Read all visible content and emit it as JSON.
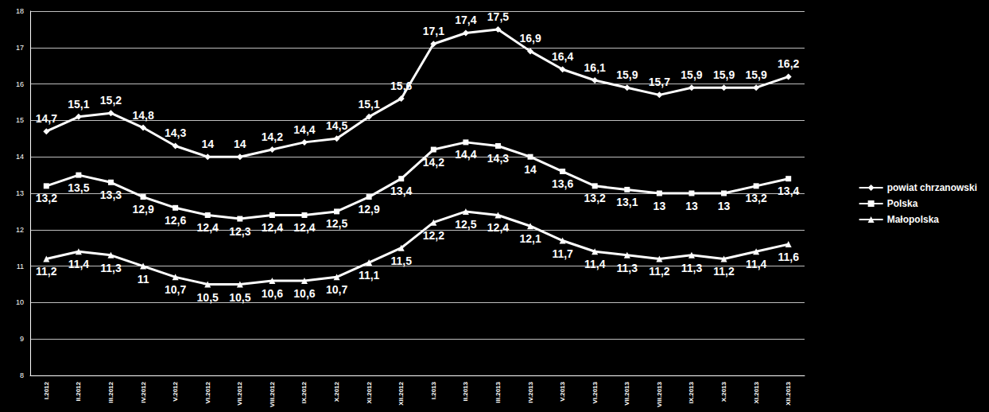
{
  "chart_data": {
    "type": "line",
    "categories": [
      "I.2012",
      "II.2012",
      "III.2012",
      "IV.2012",
      "V.2012",
      "VI.2012",
      "VII.2012",
      "VIII.2012",
      "IX.2012",
      "X.2012",
      "XI.2012",
      "XII.2012",
      "I.2013",
      "II.2013",
      "III.2013",
      "IV.2013",
      "V.2013",
      "VI.2013",
      "VII.2013",
      "VIII.2013",
      "IX.2013",
      "X.2013",
      "XI.2013",
      "XII.2013"
    ],
    "series": [
      {
        "name": "powiat chrzanowski",
        "color": "#ffffff",
        "marker": "diamond",
        "values": [
          14.7,
          15.1,
          15.2,
          14.8,
          14.3,
          14,
          14,
          14.2,
          14.4,
          14.5,
          15.1,
          15.6,
          17.1,
          17.4,
          17.5,
          16.9,
          16.4,
          16.1,
          15.9,
          15.7,
          15.9,
          15.9,
          15.9,
          16.2
        ],
        "value_labels": [
          "14,7",
          "15,1",
          "15,2",
          "14,8",
          "14,3",
          "14",
          "14",
          "14,2",
          "14,4",
          "14,5",
          "15,1",
          "15,6",
          "17,1",
          "17,4",
          "17,5",
          "16,9",
          "16,4",
          "16,1",
          "15,9",
          "15,7",
          "15,9",
          "15,9",
          "15,9",
          "16,2"
        ]
      },
      {
        "name": "Polska",
        "color": "#ffffff",
        "marker": "square",
        "values": [
          13.2,
          13.5,
          13.3,
          12.9,
          12.6,
          12.4,
          12.3,
          12.4,
          12.4,
          12.5,
          12.9,
          13.4,
          14.2,
          14.4,
          14.3,
          14,
          13.6,
          13.2,
          13.1,
          13,
          13,
          13,
          13.2,
          13.4
        ],
        "value_labels": [
          "13,2",
          "13,5",
          "13,3",
          "12,9",
          "12,6",
          "12,4",
          "12,3",
          "12,4",
          "12,4",
          "12,5",
          "12,9",
          "13,4",
          "14,2",
          "14,4",
          "14,3",
          "14",
          "13,6",
          "13,2",
          "13,1",
          "13",
          "13",
          "13",
          "13,2",
          "13,4"
        ]
      },
      {
        "name": "Małopolska",
        "color": "#ffffff",
        "marker": "triangle",
        "values": [
          11.2,
          11.4,
          11.3,
          11,
          10.7,
          10.5,
          10.5,
          10.6,
          10.6,
          10.7,
          11.1,
          11.5,
          12.2,
          12.5,
          12.4,
          12.1,
          11.7,
          11.4,
          11.3,
          11.2,
          11.3,
          11.2,
          11.4,
          11.6
        ],
        "value_labels": [
          "11,2",
          "11,4",
          "11,3",
          "11",
          "10,7",
          "10,5",
          "10,5",
          "10,6",
          "10,6",
          "10,7",
          "11,1",
          "11,5",
          "12,2",
          "12,5",
          "12,4",
          "12,1",
          "11,7",
          "11,4",
          "11,3",
          "11,2",
          "11,3",
          "11,2",
          "11,4",
          "11,6"
        ]
      }
    ],
    "ylim": [
      8,
      18
    ],
    "yticks": [
      8,
      9,
      10,
      11,
      12,
      13,
      14,
      15,
      16,
      17,
      18
    ],
    "grid": true,
    "legend": "right",
    "data_labels": true
  }
}
